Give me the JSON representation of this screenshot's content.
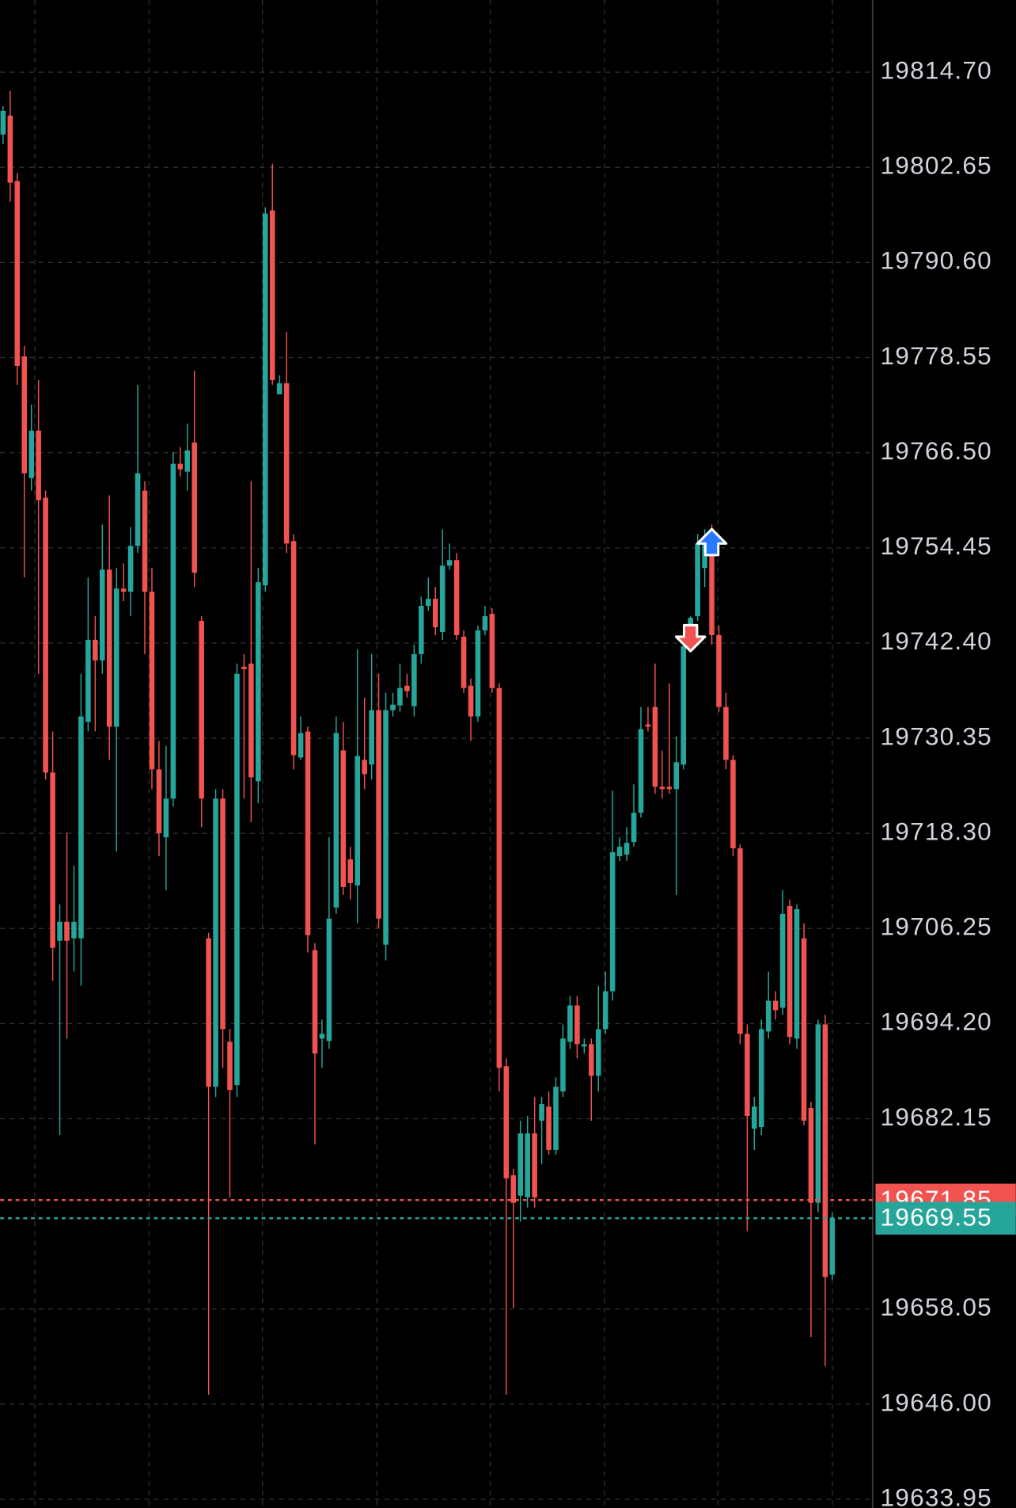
{
  "chart_data": {
    "type": "candlestick",
    "up_color": "#26a69a",
    "down_color": "#f05350",
    "grid": true,
    "ylim": [
      19632.85,
      19823.84
    ],
    "yticks": [
      {
        "value": 19814.7,
        "label": "19814.70"
      },
      19802.65,
      {
        "value": 19790.6,
        "label": "19790.60"
      },
      19778.55,
      {
        "value": 19766.5,
        "label": "19766.50"
      },
      19754.45,
      {
        "value": 19742.4,
        "label": "19742.40"
      },
      19730.35,
      {
        "value": 19718.3,
        "label": "19718.30"
      },
      19706.25,
      {
        "value": 19694.2,
        "label": "19694.20"
      },
      19682.15,
      19658.05,
      {
        "value": 19646.0,
        "label": "19646.00"
      },
      19633.95
    ],
    "open": [
      19806.8,
      19809.2,
      19800.9,
      19778.7,
      19763.3,
      19769.3,
      19760.8,
      19726.0,
      19704.7,
      19707.1,
      19705.0,
      19705.0,
      19732.4,
      19742.8,
      19740.2,
      19751.7,
      19731.8,
      19749.3,
      19748.9,
      19754.7,
      19761.7,
      19748.9,
      19726.4,
      19717.8,
      19722.7,
      19765.1,
      19764.1,
      19767.8,
      19745.2,
      19705.0,
      19686.2,
      19722.7,
      19691.9,
      19686.4,
      19739.4,
      19739.8,
      19724.9,
      19749.7,
      19797.2,
      19773.9,
      19775.3,
      19755.3,
      19727.9,
      19731.2,
      19703.5,
      19692.3,
      19692.0,
      19708.9,
      19728.8,
      19715.0,
      19711.7,
      19727.6,
      19727.0,
      19733.9,
      19704.2,
      19733.9,
      19734.5,
      19737.0,
      19734.4,
      19741.0,
      19747.1,
      19748.0,
      19743.8,
      19752.2,
      19752.9,
      19743.2,
      19737.0,
      19733.1,
      19744.0,
      19746.1,
      19736.7,
      19688.8,
      19675.0,
      19672.4,
      19672.2,
      19680.3,
      19681.9,
      19683.7,
      19678.2,
      19685.6,
      19691.9,
      19696.5,
      19691.3,
      19691.6,
      19687.6,
      19693.5,
      19698.3,
      19715.4,
      19715.6,
      19717.2,
      19720.9,
      19732.1,
      19734.3,
      19724.2,
      19724.2,
      19723.9,
      19727.0,
      19742.0,
      19745.8,
      19751.9,
      19755.0,
      19743.4,
      19734.3,
      19727.6,
      19716.4,
      19692.9,
      19680.9,
      19681.1,
      19693.2,
      19697.1,
      19696.2,
      19709.1,
      19692.3,
      19705.0,
      19683.5,
      19671.5,
      19694.1,
      19662.4
    ],
    "high": [
      19810.4,
      19812.3,
      19801.9,
      19780.0,
      19772.6,
      19775.7,
      19761.7,
      19731.2,
      19709.3,
      19718.4,
      19714.2,
      19738.5,
      19750.7,
      19745.8,
      19757.4,
      19761.1,
      19751.9,
      19752.5,
      19757.1,
      19775.1,
      19762.9,
      19751.9,
      19730.0,
      19729.4,
      19766.6,
      19767.2,
      19770.2,
      19776.9,
      19745.8,
      19705.7,
      19723.9,
      19723.9,
      19693.5,
      19739.8,
      19741.0,
      19762.9,
      19751.9,
      19797.6,
      19803.1,
      19776.3,
      19781.8,
      19756.2,
      19733.1,
      19731.8,
      19704.4,
      19694.7,
      19717.8,
      19733.1,
      19732.4,
      19716.6,
      19741.6,
      19735.5,
      19741.0,
      19738.5,
      19736.1,
      19736.1,
      19739.8,
      19738.5,
      19742.2,
      19748.3,
      19750.7,
      19749.5,
      19756.8,
      19755.0,
      19753.8,
      19744.0,
      19737.9,
      19744.6,
      19747.1,
      19746.8,
      19737.3,
      19689.8,
      19675.8,
      19681.9,
      19682.5,
      19684.9,
      19684.9,
      19685.6,
      19687.4,
      19694.1,
      19697.7,
      19697.7,
      19692.3,
      19692.3,
      19699.0,
      19700.8,
      19723.7,
      19717.8,
      19719.1,
      19724.5,
      19734.3,
      19734.3,
      19739.8,
      19728.8,
      19737.3,
      19730.6,
      19742.8,
      19745.8,
      19756.2,
      19756.8,
      19757.4,
      19744.6,
      19736.1,
      19728.2,
      19716.9,
      19694.1,
      19684.9,
      19694.7,
      19700.8,
      19698.3,
      19711.1,
      19709.9,
      19709.3,
      19706.9,
      19684.3,
      19694.7,
      19695.3,
      19670.3
    ],
    "low": [
      19805.6,
      19798.3,
      19775.1,
      19750.7,
      19761.7,
      19738.5,
      19725.1,
      19699.6,
      19680.1,
      19692.3,
      19700.8,
      19699.0,
      19731.2,
      19731.2,
      19738.5,
      19727.6,
      19716.0,
      19747.7,
      19745.8,
      19753.8,
      19741.0,
      19723.9,
      19715.4,
      19711.1,
      19721.7,
      19763.5,
      19761.7,
      19749.5,
      19719.1,
      19647.2,
      19684.9,
      19688.6,
      19672.2,
      19684.9,
      19722.7,
      19719.7,
      19722.1,
      19748.9,
      19775.1,
      19773.9,
      19753.8,
      19726.4,
      19727.6,
      19703.2,
      19678.9,
      19688.6,
      19691.0,
      19708.1,
      19710.5,
      19709.9,
      19706.9,
      19723.9,
      19725.1,
      19706.3,
      19702.2,
      19733.1,
      19733.7,
      19735.5,
      19733.1,
      19739.8,
      19746.5,
      19743.4,
      19742.8,
      19751.7,
      19742.8,
      19736.1,
      19730.0,
      19732.4,
      19743.4,
      19736.1,
      19685.6,
      19647.2,
      19658.2,
      19669.1,
      19670.9,
      19670.9,
      19676.4,
      19677.6,
      19677.6,
      19684.9,
      19691.0,
      19689.8,
      19690.4,
      19681.9,
      19685.6,
      19692.9,
      19697.1,
      19714.8,
      19714.8,
      19716.6,
      19720.3,
      19731.2,
      19723.3,
      19722.7,
      19723.3,
      19710.5,
      19726.4,
      19741.6,
      19745.2,
      19749.5,
      19742.2,
      19733.7,
      19726.4,
      19715.4,
      19691.6,
      19667.9,
      19678.2,
      19680.1,
      19692.3,
      19694.7,
      19695.3,
      19691.6,
      19691.0,
      19681.3,
      19654.5,
      19670.3,
      19650.8,
      19661.8
    ],
    "close": [
      19809.8,
      19800.7,
      19777.5,
      19763.9,
      19769.3,
      19760.5,
      19726.0,
      19703.8,
      19707.1,
      19704.7,
      19707.1,
      19733.1,
      19742.8,
      19740.2,
      19751.7,
      19731.8,
      19749.3,
      19748.9,
      19754.7,
      19763.9,
      19748.9,
      19726.4,
      19718.3,
      19722.7,
      19765.1,
      19764.4,
      19766.8,
      19751.3,
      19722.7,
      19686.2,
      19722.7,
      19693.5,
      19685.8,
      19738.5,
      19739.1,
      19725.4,
      19750.1,
      19796.8,
      19775.7,
      19775.3,
      19755.0,
      19728.2,
      19731.0,
      19705.4,
      19690.4,
      19692.9,
      19707.5,
      19731.0,
      19711.5,
      19712.0,
      19728.1,
      19725.8,
      19733.9,
      19707.5,
      19733.9,
      19734.6,
      19736.7,
      19736.3,
      19741.0,
      19747.1,
      19748.0,
      19744.4,
      19752.2,
      19752.9,
      19743.4,
      19736.7,
      19733.1,
      19744.0,
      19745.8,
      19736.7,
      19688.6,
      19674.6,
      19671.5,
      19680.3,
      19680.3,
      19672.2,
      19684.0,
      19678.2,
      19686.2,
      19692.3,
      19696.5,
      19691.6,
      19691.6,
      19687.6,
      19693.5,
      19698.3,
      19715.9,
      19716.6,
      19717.1,
      19720.9,
      19731.5,
      19731.8,
      19724.2,
      19723.9,
      19723.9,
      19727.3,
      19742.0,
      19745.6,
      19755.0,
      19755.0,
      19743.4,
      19734.3,
      19727.6,
      19716.4,
      19692.9,
      19682.5,
      19683.7,
      19693.5,
      19697.1,
      19695.9,
      19708.1,
      19692.5,
      19708.7,
      19681.9,
      19671.5,
      19694.1,
      19662.1,
      19669.55
    ],
    "price_lines": [
      {
        "value": 19671.85,
        "color": "#f05350"
      },
      {
        "value": 19669.55,
        "color": "#26a69a"
      }
    ],
    "markers": [
      {
        "candle": 100,
        "value": 19755.0,
        "shape": "up",
        "color": "#2979ff"
      },
      {
        "candle": 97,
        "value": 19743.2,
        "shape": "down",
        "color": "#f05350"
      }
    ]
  }
}
